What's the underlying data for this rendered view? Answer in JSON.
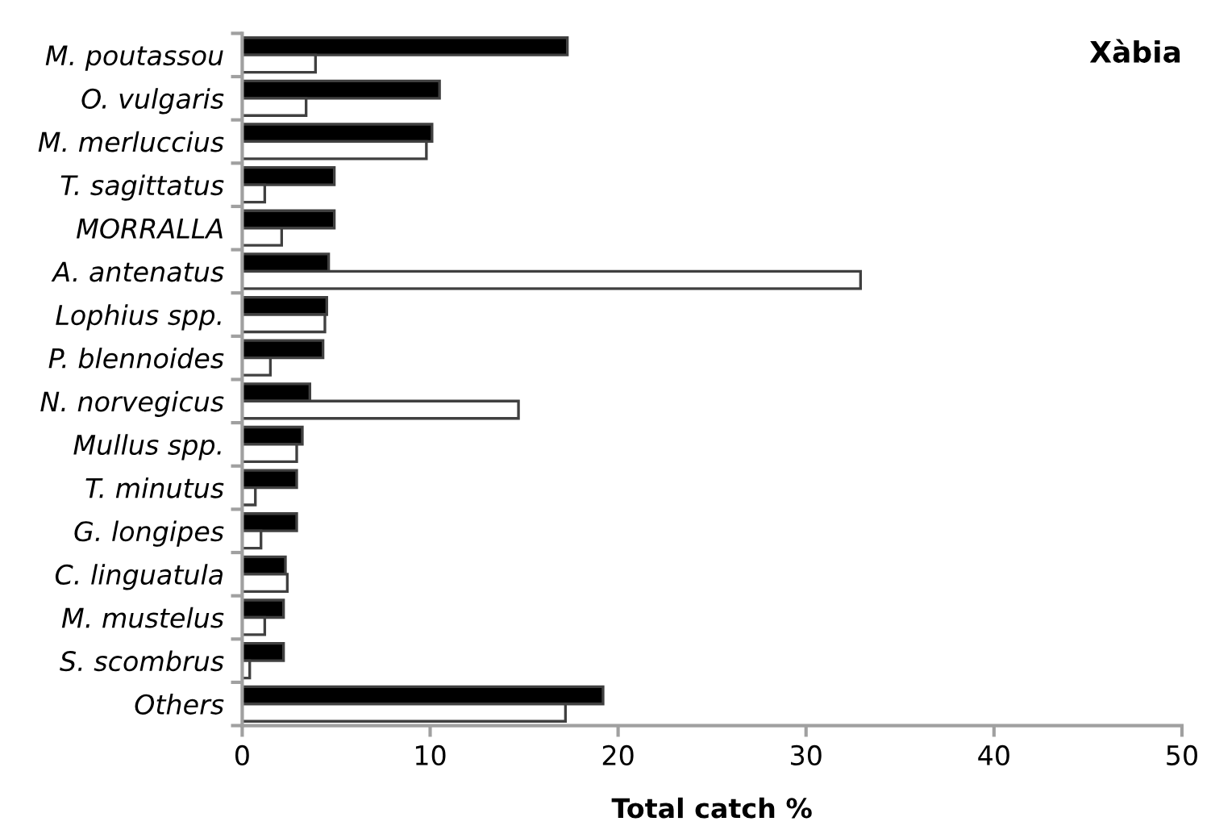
{
  "chart_data": {
    "type": "bar",
    "orientation": "horizontal",
    "title": "Xàbia",
    "xlabel": "Total catch %",
    "categories": [
      "M. poutassou",
      "O. vulgaris",
      "M. merluccius",
      "T. sagittatus",
      "MORRALLA",
      "A. antenatus",
      "Lophius spp.",
      "P. blennoides",
      "N. norvegicus",
      "Mullus spp.",
      "T. minutus",
      "G. longipes",
      "C. linguatula",
      "M. mustelus",
      "S. scombrus",
      "Others"
    ],
    "series": [
      {
        "color": "#000000",
        "values": [
          17.3,
          10.5,
          10.1,
          4.9,
          4.9,
          4.6,
          4.5,
          4.3,
          3.6,
          3.2,
          2.9,
          2.9,
          2.3,
          2.2,
          2.2,
          19.2
        ]
      },
      {
        "color": "#ffffff",
        "values": [
          3.9,
          3.4,
          9.8,
          1.2,
          2.1,
          32.9,
          4.4,
          1.5,
          14.7,
          2.9,
          0.7,
          1.0,
          2.4,
          1.2,
          0.4,
          17.2
        ]
      }
    ],
    "xlim": [
      0,
      50
    ],
    "xticks": [
      0,
      10,
      20,
      30,
      40,
      50
    ],
    "grid": false,
    "legend": false
  }
}
